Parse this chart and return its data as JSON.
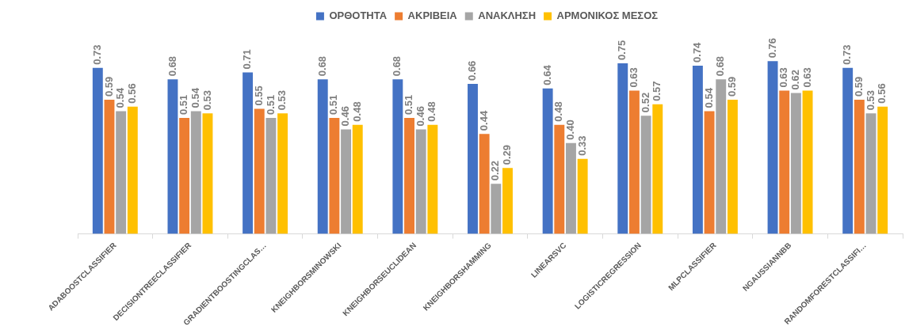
{
  "chart_data": {
    "type": "bar",
    "categories": [
      "ADABOOSTCLASSIFIER",
      "DECISIONTREECLASSIFIER",
      "GRADIENTBOOSTINGCLAS…",
      "KNEIGHBORSMINOWSKI",
      "KNEIGHBORSEUCLIDEAN",
      "KNEIGHBORSHAMMING",
      "LINEARSVC",
      "LOGISTICREGRESSION",
      "MLPCLASSIFIER",
      "NGAUSSIANNBB",
      "RANDOMFORESTCLASSIFI…"
    ],
    "series": [
      {
        "name": "ΟΡΘΟΤΗΤΑ",
        "color": "#4472c4",
        "values": [
          0.73,
          0.68,
          0.71,
          0.68,
          0.68,
          0.66,
          0.64,
          0.75,
          0.74,
          0.76,
          0.73
        ],
        "value_labels": [
          "0.73",
          "0.68",
          "0.71",
          "0.68",
          "0.68",
          "0.66",
          "0.64",
          "0.75",
          "0.74",
          "0.76",
          "0.73"
        ]
      },
      {
        "name": "ΑΚΡΙΒΕΙΑ",
        "color": "#ed7d31",
        "values": [
          0.59,
          0.51,
          0.55,
          0.51,
          0.51,
          0.44,
          0.48,
          0.63,
          0.54,
          0.63,
          0.59
        ],
        "value_labels": [
          "0.59",
          "0.51",
          "0.55",
          "0.51",
          "0.51",
          "0.44",
          "0.48",
          "0.63",
          "0.54",
          "0.63",
          "0.59"
        ]
      },
      {
        "name": "ΑΝΑΚΛΗΣΗ",
        "color": "#a5a5a5",
        "values": [
          0.54,
          0.54,
          0.51,
          0.46,
          0.46,
          0.22,
          0.4,
          0.52,
          0.68,
          0.62,
          0.53
        ],
        "value_labels": [
          "0.54",
          "0.54",
          "0.51",
          "0.46",
          "0.46",
          "0.22",
          "0.40",
          "0.52",
          "0.68",
          "0.62",
          "0.53"
        ]
      },
      {
        "name": "ΑΡΜΟΝΙΚΟΣ ΜΕΣΟΣ",
        "color": "#ffc000",
        "values": [
          0.56,
          0.53,
          0.53,
          0.48,
          0.48,
          0.29,
          0.33,
          0.57,
          0.59,
          0.63,
          0.56
        ],
        "value_labels": [
          "0.56",
          "0.53",
          "0.53",
          "0.48",
          "0.48",
          "0.29",
          "0.33",
          "0.57",
          "0.59",
          "0.63",
          "0.56"
        ]
      }
    ],
    "legend": "top",
    "grid": false
  }
}
